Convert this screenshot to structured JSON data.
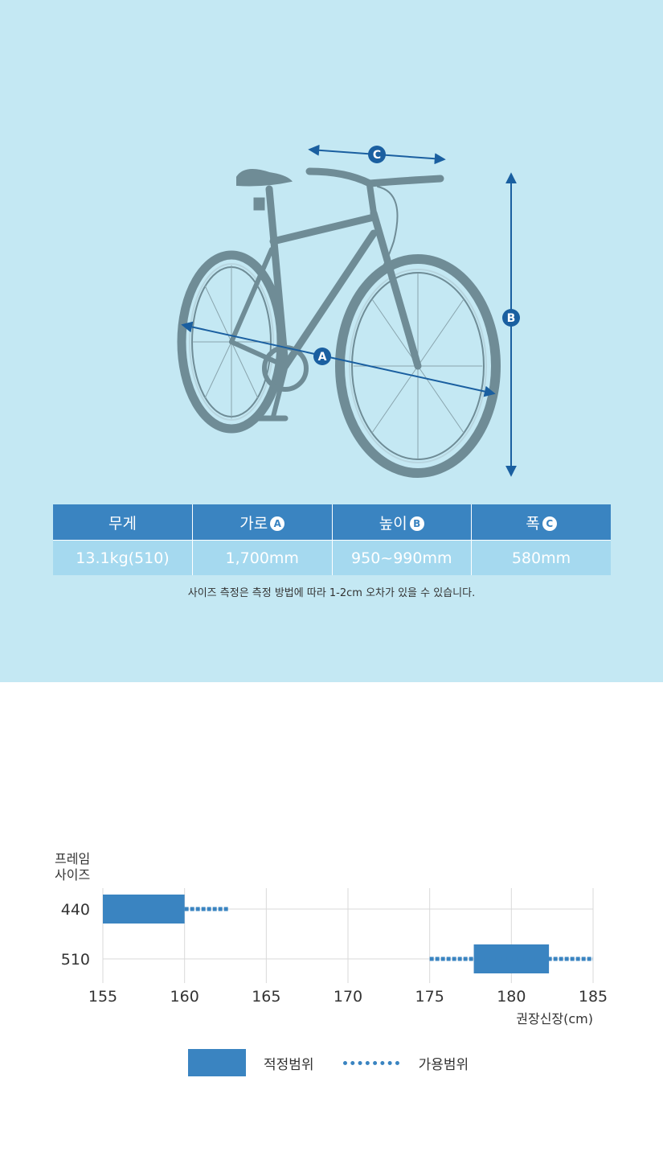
{
  "spec_table": {
    "headers": [
      {
        "label": "무게",
        "marker": ""
      },
      {
        "label": "가로",
        "marker": "A"
      },
      {
        "label": "높이",
        "marker": "B"
      },
      {
        "label": "폭",
        "marker": "C"
      }
    ],
    "values": [
      "13.1kg(510)",
      "1,700mm",
      "950~990mm",
      "580mm"
    ]
  },
  "note": "사이즈 측정은 측정 방법에 따라 1-2cm 오차가 있을 수 있습니다.",
  "dimension_markers": {
    "a": "A",
    "b": "B",
    "c": "C"
  },
  "colors": {
    "accent": "#3a84c1",
    "arrow": "#1a5fa0",
    "background": "#c4e8f3",
    "row": "#a5d9ef"
  },
  "chart_data": {
    "type": "bar",
    "orientation": "horizontal",
    "ylabel_line1": "프레임",
    "ylabel_line2": "사이즈",
    "xlabel": "권장신장(cm)",
    "categories": [
      "440",
      "510"
    ],
    "xlim": [
      155,
      185
    ],
    "xticks": [
      155,
      160,
      165,
      170,
      175,
      180,
      185
    ],
    "grid": true,
    "series": [
      {
        "name": "적정범위",
        "style": "solid",
        "ranges": [
          [
            155,
            160
          ],
          [
            177.7,
            182.3
          ]
        ]
      },
      {
        "name": "가용범위",
        "style": "dotted",
        "ranges": [
          [
            160,
            162.7
          ],
          [
            175,
            185
          ]
        ]
      }
    ],
    "legend_position": "bottom-center"
  },
  "legend": {
    "solid_label": "적정범위",
    "dotted_label": "가용범위"
  }
}
